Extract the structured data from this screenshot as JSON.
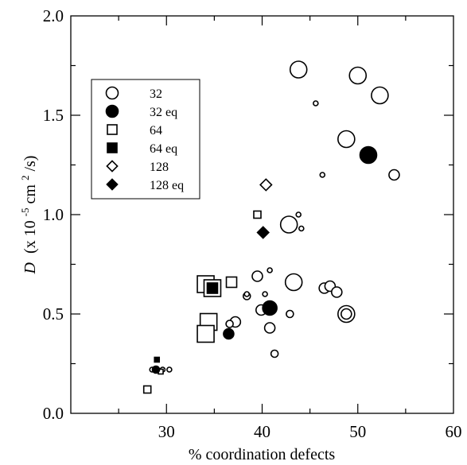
{
  "chart_data": {
    "type": "scatter",
    "xlabel": "% coordination defects",
    "ylabel_symbol": "D",
    "ylabel_parts": [
      "(x 10",
      "-5",
      " cm",
      "2",
      "/s)"
    ],
    "xlim": [
      20,
      60
    ],
    "ylim": [
      0.0,
      2.0
    ],
    "x_ticks": [
      30,
      40,
      50,
      60
    ],
    "x_tick_labels": [
      "30",
      "40",
      "50",
      "60"
    ],
    "y_ticks": [
      0.0,
      0.5,
      1.0,
      1.5,
      2.0
    ],
    "y_tick_labels": [
      "0.0",
      "0.5",
      "1.0",
      "1.5",
      "2.0"
    ],
    "legend_placement": "upper-left",
    "series": [
      {
        "name": "32",
        "marker": "circle",
        "filled": false,
        "points": [
          {
            "x": 43.8,
            "y": 1.73,
            "size": "large"
          },
          {
            "x": 50.0,
            "y": 1.7,
            "size": "large"
          },
          {
            "x": 52.3,
            "y": 1.6,
            "size": "large"
          },
          {
            "x": 48.8,
            "y": 1.38,
            "size": "large"
          },
          {
            "x": 42.8,
            "y": 0.95,
            "size": "large"
          },
          {
            "x": 43.3,
            "y": 0.66,
            "size": "large"
          },
          {
            "x": 48.8,
            "y": 0.5,
            "size": "large",
            "double": true
          },
          {
            "x": 53.8,
            "y": 1.2,
            "size": "medium"
          },
          {
            "x": 39.5,
            "y": 0.69,
            "size": "medium"
          },
          {
            "x": 46.5,
            "y": 0.63,
            "size": "medium"
          },
          {
            "x": 47.1,
            "y": 0.64,
            "size": "medium"
          },
          {
            "x": 47.8,
            "y": 0.61,
            "size": "medium"
          },
          {
            "x": 39.9,
            "y": 0.52,
            "size": "medium"
          },
          {
            "x": 40.8,
            "y": 0.43,
            "size": "medium"
          },
          {
            "x": 37.2,
            "y": 0.46,
            "size": "medium"
          },
          {
            "x": 38.4,
            "y": 0.59,
            "size": "small"
          },
          {
            "x": 45.6,
            "y": 1.56,
            "size": "tiny"
          },
          {
            "x": 46.3,
            "y": 1.2,
            "size": "tiny"
          },
          {
            "x": 43.8,
            "y": 1.0,
            "size": "tiny"
          },
          {
            "x": 44.1,
            "y": 0.93,
            "size": "tiny"
          },
          {
            "x": 40.8,
            "y": 0.72,
            "size": "tiny"
          },
          {
            "x": 40.3,
            "y": 0.6,
            "size": "tiny"
          },
          {
            "x": 38.4,
            "y": 0.6,
            "size": "tiny"
          },
          {
            "x": 42.9,
            "y": 0.5,
            "size": "small"
          },
          {
            "x": 41.3,
            "y": 0.3,
            "size": "small"
          },
          {
            "x": 36.6,
            "y": 0.45,
            "size": "small"
          },
          {
            "x": 28.5,
            "y": 0.22,
            "size": "tiny"
          },
          {
            "x": 30.3,
            "y": 0.22,
            "size": "tiny"
          },
          {
            "x": 29.6,
            "y": 0.22,
            "size": "tiny"
          }
        ]
      },
      {
        "name": "32 eq",
        "marker": "circle",
        "filled": true,
        "points": [
          {
            "x": 51.1,
            "y": 1.3,
            "size": "large"
          },
          {
            "x": 40.8,
            "y": 0.53,
            "size": "medium-large"
          },
          {
            "x": 36.5,
            "y": 0.4,
            "size": "medium"
          },
          {
            "x": 28.9,
            "y": 0.22,
            "size": "small"
          }
        ]
      },
      {
        "name": "64",
        "marker": "square",
        "filled": false,
        "points": [
          {
            "x": 39.5,
            "y": 1.0,
            "size": "small"
          },
          {
            "x": 34.1,
            "y": 0.65,
            "size": "large"
          },
          {
            "x": 36.8,
            "y": 0.66,
            "size": "medium"
          },
          {
            "x": 34.8,
            "y": 0.63,
            "size": "large"
          },
          {
            "x": 34.4,
            "y": 0.46,
            "size": "large"
          },
          {
            "x": 34.1,
            "y": 0.4,
            "size": "large"
          },
          {
            "x": 28.0,
            "y": 0.12,
            "size": "small"
          },
          {
            "x": 29.4,
            "y": 0.21,
            "size": "tiny"
          }
        ]
      },
      {
        "name": "64 eq",
        "marker": "square",
        "filled": true,
        "points": [
          {
            "x": 34.8,
            "y": 0.63,
            "size": "medium"
          },
          {
            "x": 29.0,
            "y": 0.27,
            "size": "tiny"
          }
        ]
      },
      {
        "name": "128",
        "marker": "diamond",
        "filled": false,
        "points": [
          {
            "x": 40.4,
            "y": 1.15,
            "size": "medium"
          }
        ]
      },
      {
        "name": "128 eq",
        "marker": "diamond",
        "filled": true,
        "points": [
          {
            "x": 40.1,
            "y": 0.91,
            "size": "medium"
          }
        ]
      }
    ]
  }
}
